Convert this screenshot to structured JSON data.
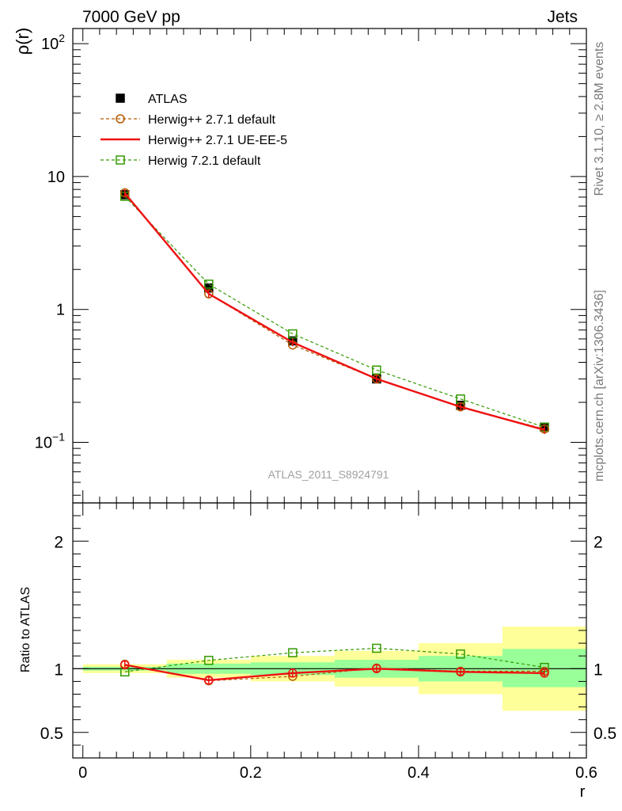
{
  "header": {
    "left": "7000 GeV pp",
    "right": "Jets"
  },
  "side_labels": {
    "rivet": "Rivet 3.1.10, ≥ 2.8M events",
    "mcplots": "mcplots.cern.ch [arXiv:1306.3436]"
  },
  "watermark": "ATLAS_2011_S8924791",
  "colors": {
    "atlas": "#000000",
    "herwigpp_default": "#b35900",
    "herwigpp_ueee5": "#ee1111",
    "herwig7": "#339900",
    "band_inner": "#99ff99",
    "band_outer": "#ffff99"
  },
  "chart_data": [
    {
      "type": "line",
      "panel": "main",
      "ylabel": "ρ(r)",
      "yscale": "log",
      "ylim": [
        0.035,
        130
      ],
      "xlim": [
        -0.012,
        0.6
      ],
      "y_ticks": [
        {
          "value": 100,
          "base": "10",
          "exp": "2"
        },
        {
          "value": 10,
          "base": "10",
          "exp": ""
        },
        {
          "value": 1,
          "base": "1",
          "exp": ""
        },
        {
          "value": 0.1,
          "base": "10",
          "exp": "−1"
        }
      ],
      "x": [
        0.05,
        0.15,
        0.25,
        0.35,
        0.45,
        0.55
      ],
      "legend": [
        {
          "key": "atlas",
          "label": "ATLAS"
        },
        {
          "key": "herwigpp_default",
          "label": "Herwig++ 2.7.1 default"
        },
        {
          "key": "herwigpp_ueee5",
          "label": "Herwig++ 2.7.1 UE-EE-5"
        },
        {
          "key": "herwig7",
          "label": "Herwig 7.2.1 default"
        }
      ],
      "series": [
        {
          "key": "atlas",
          "name": "ATLAS",
          "values": [
            7.3,
            1.45,
            0.58,
            0.3,
            0.19,
            0.13
          ]
        },
        {
          "key": "herwigpp_default",
          "name": "Herwig++ 2.7.1 default",
          "values": [
            7.55,
            1.31,
            0.54,
            0.3,
            0.185,
            0.126
          ]
        },
        {
          "key": "herwigpp_ueee5",
          "name": "Herwig++ 2.7.1 UE-EE-5",
          "values": [
            7.5,
            1.31,
            0.565,
            0.3,
            0.185,
            0.124
          ]
        },
        {
          "key": "herwig7",
          "name": "Herwig 7.2.1 default",
          "values": [
            7.1,
            1.55,
            0.655,
            0.35,
            0.212,
            0.13
          ]
        }
      ]
    },
    {
      "type": "line",
      "panel": "ratio",
      "ylabel": "Ratio to ATLAS",
      "xlabel": "r",
      "ylim": [
        0.3,
        2.3
      ],
      "xlim": [
        -0.012,
        0.6
      ],
      "y_ticks": [
        0.5,
        1,
        2
      ],
      "x_ticks": [
        0,
        0.2,
        0.4,
        0.6
      ],
      "x_tick_labels": [
        "0",
        "0.2",
        "0.4",
        "0.6"
      ],
      "x": [
        0.05,
        0.15,
        0.25,
        0.35,
        0.45,
        0.55
      ],
      "bands": [
        {
          "x0": 0.0,
          "x1": 0.1,
          "inner": [
            0.985,
            1.015
          ],
          "outer": [
            0.965,
            1.035
          ]
        },
        {
          "x0": 0.1,
          "x1": 0.2,
          "inner": [
            0.96,
            1.04
          ],
          "outer": [
            0.93,
            1.07
          ]
        },
        {
          "x0": 0.2,
          "x1": 0.3,
          "inner": [
            0.95,
            1.05
          ],
          "outer": [
            0.9,
            1.1
          ]
        },
        {
          "x0": 0.3,
          "x1": 0.4,
          "inner": [
            0.93,
            1.07
          ],
          "outer": [
            0.86,
            1.14
          ]
        },
        {
          "x0": 0.4,
          "x1": 0.5,
          "inner": [
            0.9,
            1.1
          ],
          "outer": [
            0.8,
            1.2
          ]
        },
        {
          "x0": 0.5,
          "x1": 0.6,
          "inner": [
            0.855,
            1.155
          ],
          "outer": [
            0.67,
            1.33
          ]
        }
      ],
      "series": [
        {
          "key": "herwigpp_default",
          "name": "Herwig++ 2.7.1 default",
          "values": [
            1.035,
            0.905,
            0.94,
            1.005,
            0.98,
            0.98
          ]
        },
        {
          "key": "herwigpp_ueee5",
          "name": "Herwig++ 2.7.1 UE-EE-5",
          "values": [
            1.03,
            0.91,
            0.965,
            1.0,
            0.975,
            0.965
          ]
        },
        {
          "key": "herwig7",
          "name": "Herwig 7.2.1 default",
          "values": [
            0.975,
            1.065,
            1.125,
            1.16,
            1.115,
            1.01
          ]
        }
      ]
    }
  ]
}
